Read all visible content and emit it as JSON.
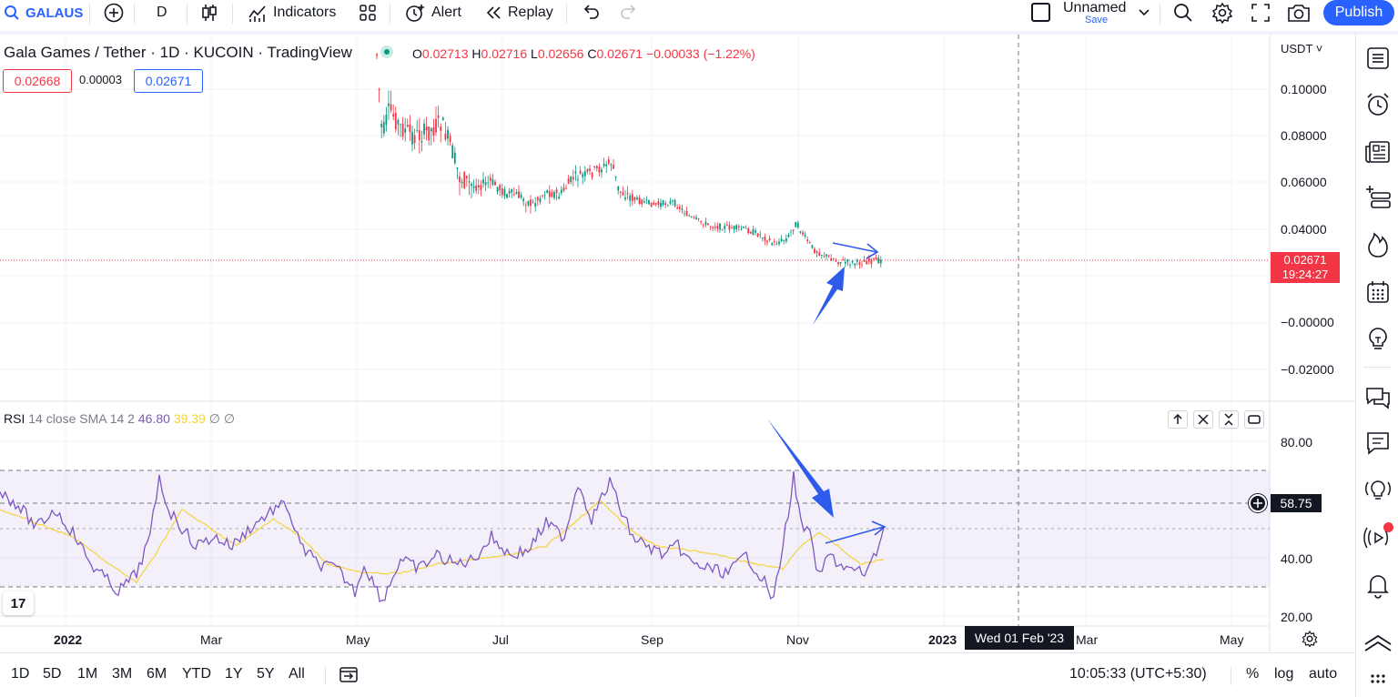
{
  "toolbar": {
    "symbol": "GALAUS",
    "interval": "D",
    "indicators_label": "Indicators",
    "alert_label": "Alert",
    "replay_label": "Replay",
    "layout_name": "Unnamed",
    "save_label": "Save",
    "publish_label": "Publish"
  },
  "legend": {
    "title": "Gala Games / Tether · 1D · KUCOIN · TradingView",
    "open_key": "O",
    "open": "0.02713",
    "high_key": "H",
    "high": "0.02716",
    "low_key": "L",
    "low": "0.02656",
    "close_key": "C",
    "close": "0.02671",
    "change": "−0.00033 (−1.22%)",
    "bid": "0.02668",
    "spread": "0.00003",
    "ask": "0.02671"
  },
  "rsi_legend": {
    "name": "RSI",
    "params": "14 close SMA 14 2",
    "rsi_value": "46.80",
    "sma_value": "39.39",
    "extra1": "∅",
    "extra2": "∅"
  },
  "price_axis": {
    "currency": "USDT",
    "labels": [
      "0.10000",
      "0.08000",
      "0.06000",
      "0.04000",
      "−0.00000",
      "−0.02000"
    ],
    "last_price": "0.02671",
    "countdown": "19:24:27"
  },
  "rsi_axis": {
    "labels": [
      "80.00",
      "40.00",
      "20.00"
    ],
    "crosshair_value": "58.75"
  },
  "time_axis": {
    "labels": [
      "2022",
      "Mar",
      "May",
      "Jul",
      "Sep",
      "Nov",
      "2023",
      "Mar",
      "May"
    ],
    "crosshair_date": "Wed 01 Feb '23"
  },
  "ranges": [
    "1D",
    "5D",
    "1M",
    "3M",
    "6M",
    "YTD",
    "1Y",
    "5Y",
    "All"
  ],
  "footer": {
    "clock": "10:05:33 (UTC+5:30)",
    "percent": "%",
    "log": "log",
    "auto": "auto"
  },
  "tv_logo": "17",
  "colors": {
    "accent": "#2962ff",
    "down": "#f23645",
    "up": "#089981",
    "rsi": "#7e57c2",
    "rsi_sma": "#f5d33b",
    "annotation": "#2f5bea"
  }
}
